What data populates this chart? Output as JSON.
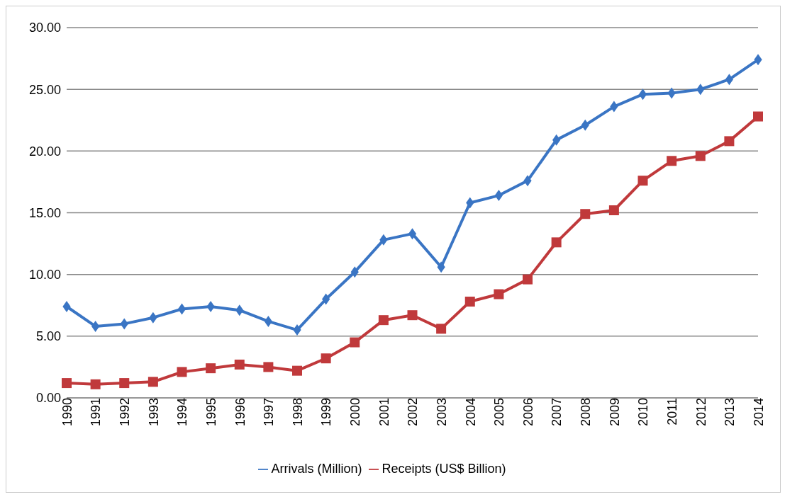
{
  "chart_data": {
    "type": "line",
    "categories": [
      "1990",
      "1991",
      "1992",
      "1993",
      "1994",
      "1995",
      "1996",
      "1997",
      "1998",
      "1999",
      "2000",
      "2001",
      "2002",
      "2003",
      "2004",
      "2005",
      "2006",
      "2007",
      "2008",
      "2009",
      "2010",
      "2011",
      "2012",
      "2013",
      "2014"
    ],
    "series": [
      {
        "name": "Arrivals (Million)",
        "color": "#3a75c4",
        "marker": "diamond",
        "values": [
          7.4,
          5.8,
          6.0,
          6.5,
          7.2,
          7.4,
          7.1,
          6.2,
          5.5,
          8.0,
          10.2,
          12.8,
          13.3,
          10.6,
          15.8,
          16.4,
          17.6,
          20.9,
          22.1,
          23.6,
          24.6,
          24.7,
          25.0,
          25.8,
          27.4
        ]
      },
      {
        "name": "Receipts (US$ Billion)",
        "color": "#c0393b",
        "marker": "square",
        "values": [
          1.2,
          1.1,
          1.2,
          1.3,
          2.1,
          2.4,
          2.7,
          2.5,
          2.2,
          3.2,
          4.5,
          6.3,
          6.7,
          5.6,
          7.8,
          8.4,
          9.6,
          12.6,
          14.9,
          15.2,
          17.6,
          19.2,
          19.6,
          20.8,
          22.8
        ]
      }
    ],
    "ylim": [
      0,
      30
    ],
    "yticks": [
      {
        "value": 0,
        "label": "0.00"
      },
      {
        "value": 5,
        "label": "5.00"
      },
      {
        "value": 10,
        "label": "10.00"
      },
      {
        "value": 15,
        "label": "15.00"
      },
      {
        "value": 20,
        "label": "20.00"
      },
      {
        "value": 25,
        "label": "25.00"
      },
      {
        "value": 30,
        "label": "30.00"
      }
    ],
    "grid": "y",
    "legend": "bottom",
    "line_style": "solid"
  }
}
